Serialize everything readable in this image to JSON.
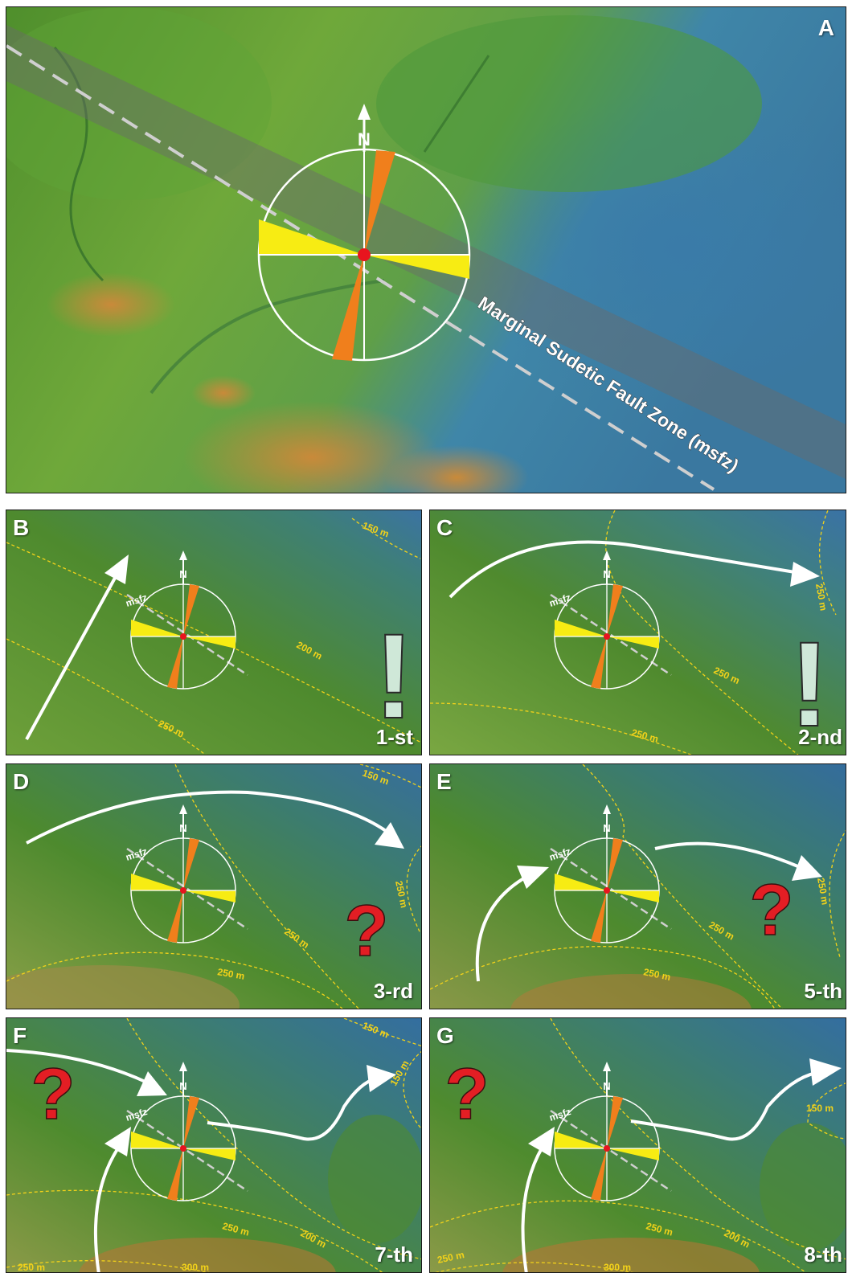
{
  "panels": {
    "A": {
      "label": "A",
      "fault_label": "Marginal Sudetic Fault Zone (msfz)",
      "north": "N"
    },
    "B": {
      "label": "B",
      "order": "1-st",
      "north": "N",
      "fault": "msfz",
      "symbol": "!",
      "contours": [
        "150 m",
        "200 m",
        "250 m"
      ]
    },
    "C": {
      "label": "C",
      "order": "2-nd",
      "north": "N",
      "fault": "msfz",
      "symbol": "!",
      "contours": [
        "250 m",
        "250 m",
        "250 m"
      ]
    },
    "D": {
      "label": "D",
      "order": "3-rd",
      "north": "N",
      "fault": "msfz",
      "symbol": "?",
      "contours": [
        "150 m",
        "250 m",
        "250 m",
        "250 m"
      ]
    },
    "E": {
      "label": "E",
      "order": "5-th",
      "north": "N",
      "fault": "msfz",
      "symbol": "?",
      "contours": [
        "250 m",
        "250 m",
        "250 m"
      ]
    },
    "F": {
      "label": "F",
      "order": "7-th",
      "north": "N",
      "fault": "msfz",
      "symbol": "?",
      "contours": [
        "150 m",
        "150 m",
        "250 m",
        "200 m",
        "250 m",
        "300 m"
      ]
    },
    "G": {
      "label": "G",
      "order": "8-th",
      "north": "N",
      "fault": "msfz",
      "symbol": "?",
      "contours": [
        "150 m",
        "250 m",
        "200 m",
        "250 m",
        "300 m"
      ]
    }
  },
  "colors": {
    "lowland_green": "#5c9a2e",
    "valley_blue": "#3f7fa6",
    "upland_orange": "#c48a3a",
    "rose_yellow": "#f7ec13",
    "rose_orange": "#f07f1c",
    "center_red": "#e8141e",
    "fault_grey": "#c8c8c8",
    "contour_yellow": "#f2d21a",
    "question_red": "#e31e24",
    "exclaim_mint": "#cfe8d8"
  },
  "icons": [
    "compass-rose-icon",
    "north-arrow-icon",
    "flow-arrow-icon",
    "question-mark-icon",
    "exclamation-mark-icon"
  ]
}
